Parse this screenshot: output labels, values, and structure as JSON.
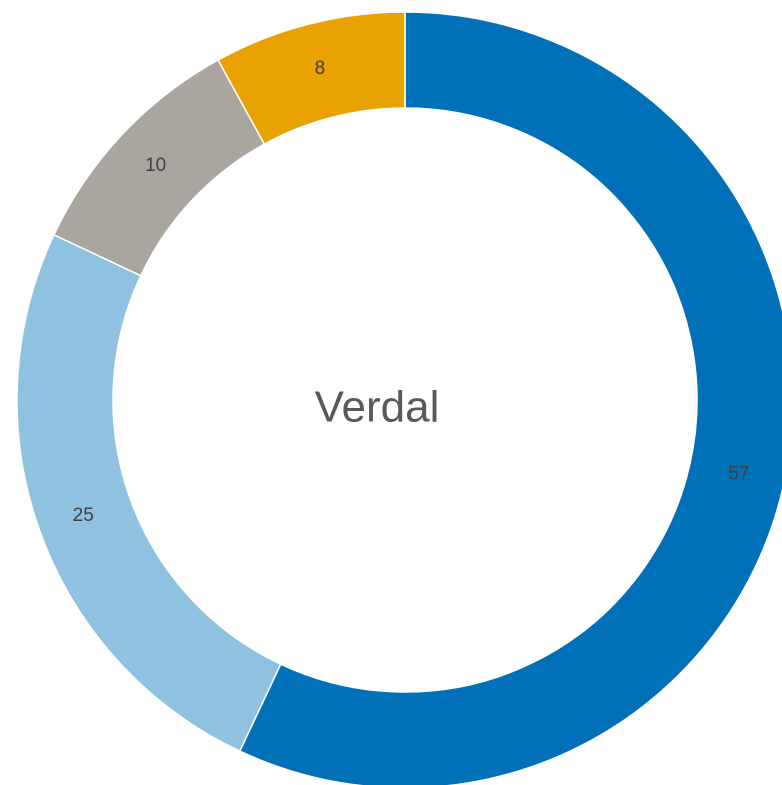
{
  "chart_data": {
    "type": "donut",
    "center_label": "Verdal",
    "values": [
      57,
      25,
      10,
      8
    ],
    "colors": [
      "#0070b8",
      "#8fc1e0",
      "#aba59f",
      "#e8a202"
    ]
  }
}
